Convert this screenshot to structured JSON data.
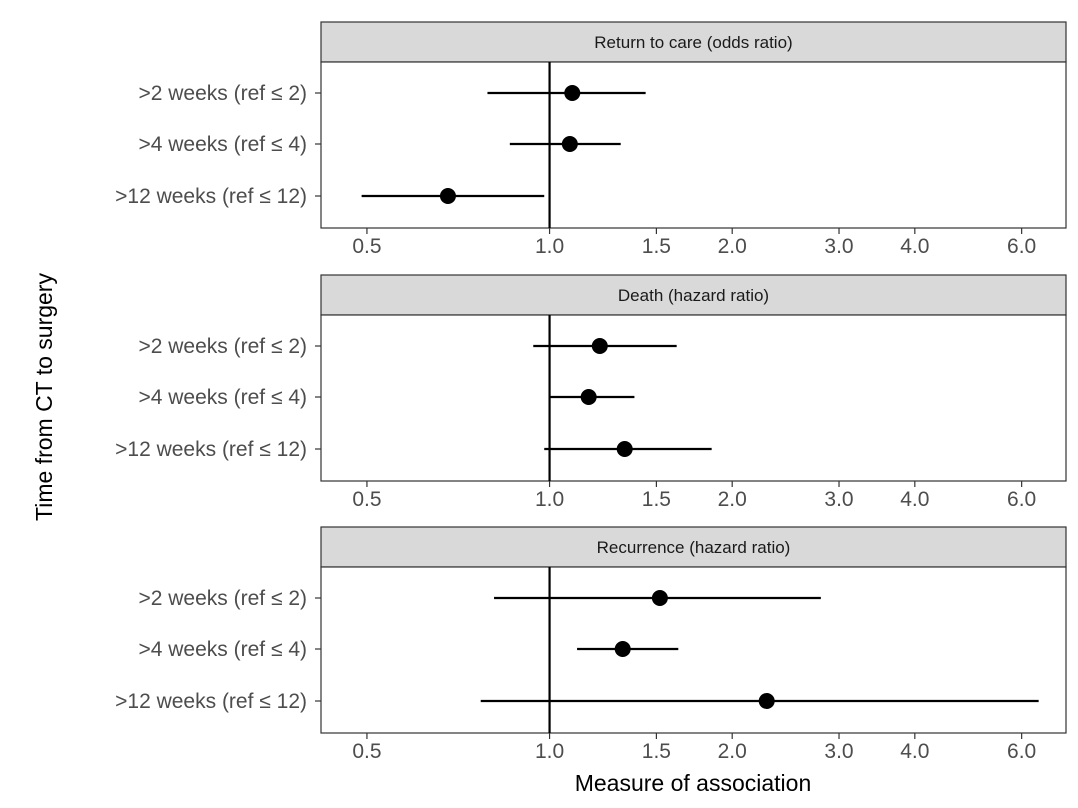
{
  "chart_data": [
    {
      "type": "forest",
      "title": "Return to care (odds ratio)",
      "x_scale": "log",
      "xlim": [
        0.42,
        7.1
      ],
      "reference_line": 1.0,
      "ticks": [
        0.5,
        1.0,
        1.5,
        2.0,
        3.0,
        4.0,
        6.0
      ],
      "tick_labels": [
        "0.5",
        "1.0",
        "1.5",
        "2.0",
        "3.0",
        "4.0",
        "6.0"
      ],
      "categories": [
        ">2 weeks (ref ≤ 2)",
        ">4 weeks (ref ≤ 4)",
        ">12 weeks (ref ≤ 12)"
      ],
      "estimates": [
        1.09,
        1.08,
        0.68
      ],
      "lower": [
        0.79,
        0.86,
        0.49
      ],
      "upper": [
        1.44,
        1.31,
        0.98
      ]
    },
    {
      "type": "forest",
      "title": "Death (hazard ratio)",
      "x_scale": "log",
      "xlim": [
        0.42,
        7.1
      ],
      "reference_line": 1.0,
      "ticks": [
        0.5,
        1.0,
        1.5,
        2.0,
        3.0,
        4.0,
        6.0
      ],
      "tick_labels": [
        "0.5",
        "1.0",
        "1.5",
        "2.0",
        "3.0",
        "4.0",
        "6.0"
      ],
      "categories": [
        ">2 weeks (ref ≤ 2)",
        ">4 weeks (ref ≤ 4)",
        ">12 weeks (ref ≤ 12)"
      ],
      "estimates": [
        1.21,
        1.16,
        1.33
      ],
      "lower": [
        0.94,
        1.0,
        0.98
      ],
      "upper": [
        1.62,
        1.38,
        1.85
      ]
    },
    {
      "type": "forest",
      "title": "Recurrence (hazard ratio)",
      "x_scale": "log",
      "xlim": [
        0.42,
        7.1
      ],
      "reference_line": 1.0,
      "ticks": [
        0.5,
        1.0,
        1.5,
        2.0,
        3.0,
        4.0,
        6.0
      ],
      "tick_labels": [
        "0.5",
        "1.0",
        "1.5",
        "2.0",
        "3.0",
        "4.0",
        "6.0"
      ],
      "categories": [
        ">2 weeks (ref ≤ 2)",
        ">4 weeks (ref ≤ 4)",
        ">12 weeks (ref ≤ 12)"
      ],
      "estimates": [
        1.52,
        1.32,
        2.28
      ],
      "lower": [
        0.81,
        1.11,
        0.77
      ],
      "upper": [
        2.8,
        1.63,
        6.4
      ]
    }
  ],
  "xlabel": "Measure of association",
  "ylabel": "Time from CT to surgery"
}
